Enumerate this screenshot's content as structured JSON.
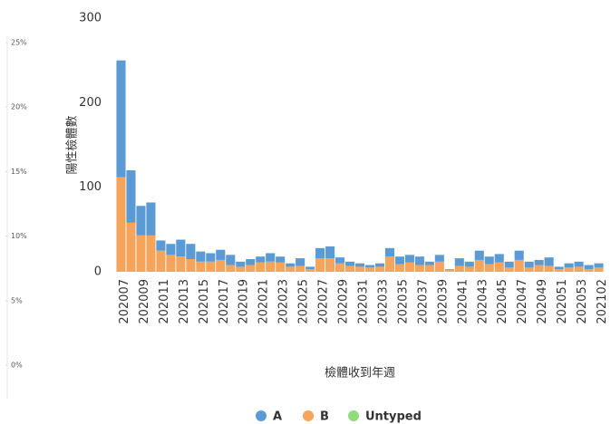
{
  "chart_data": {
    "type": "stacked-bar",
    "ylabel": "陽性檢體數",
    "xlabel": "檢體收到年週",
    "categories": [
      "202007",
      null,
      "202009",
      null,
      "202011",
      null,
      "202013",
      null,
      "202015",
      null,
      "202017",
      null,
      "202019",
      null,
      "202021",
      null,
      "202023",
      null,
      "202025",
      null,
      "202027",
      null,
      "202029",
      null,
      "202031",
      null,
      "202033",
      null,
      "202035",
      null,
      "202037",
      null,
      "202039",
      null,
      "202041",
      null,
      "202043",
      null,
      "202045",
      null,
      "202047",
      null,
      "202049",
      null,
      "202051",
      null,
      "202053",
      null,
      "202102"
    ],
    "series": [
      {
        "name": "A",
        "color": "#5b9bd5",
        "values": [
          138,
          62,
          35,
          39,
          12,
          13,
          20,
          18,
          12,
          10,
          12,
          12,
          6,
          7,
          7,
          10,
          7,
          4,
          9,
          3,
          12,
          14,
          7,
          5,
          4,
          3,
          4,
          10,
          9,
          9,
          10,
          4,
          8,
          1,
          9,
          6,
          11,
          9,
          10,
          7,
          11,
          7,
          6,
          10,
          3,
          5,
          6,
          5,
          5
        ]
      },
      {
        "name": "B",
        "color": "#f5a55b",
        "values": [
          112,
          58,
          43,
          43,
          25,
          20,
          18,
          15,
          12,
          12,
          14,
          8,
          6,
          8,
          11,
          12,
          11,
          6,
          7,
          3,
          16,
          16,
          10,
          7,
          6,
          5,
          6,
          18,
          9,
          11,
          8,
          8,
          12,
          2,
          7,
          6,
          14,
          9,
          11,
          5,
          14,
          5,
          8,
          7,
          3,
          5,
          6,
          3,
          5
        ]
      },
      {
        "name": "Untyped",
        "color": "#8fdc78",
        "values": [
          0,
          0,
          0,
          0,
          0,
          0,
          0,
          0,
          0,
          0,
          0,
          0,
          0,
          0,
          0,
          0,
          0,
          0,
          0,
          0,
          0,
          0,
          0,
          0,
          0,
          0,
          0,
          0,
          0,
          0,
          0,
          0,
          0,
          0,
          0,
          0,
          0,
          0,
          0,
          0,
          0,
          0,
          0,
          0,
          0,
          0,
          0,
          0,
          0
        ]
      }
    ],
    "ylim": [
      0,
      300
    ],
    "yticks": [
      0,
      100,
      200,
      300
    ],
    "y2lim": [
      0,
      25
    ],
    "y2ticks": [
      {
        "value": 0,
        "label": "0%"
      },
      {
        "value": 5,
        "label": "5%"
      },
      {
        "value": 10,
        "label": "10%"
      },
      {
        "value": 15,
        "label": "15%"
      },
      {
        "value": 20,
        "label": "20%"
      },
      {
        "value": 25,
        "label": "25%"
      }
    ],
    "grid": false
  }
}
